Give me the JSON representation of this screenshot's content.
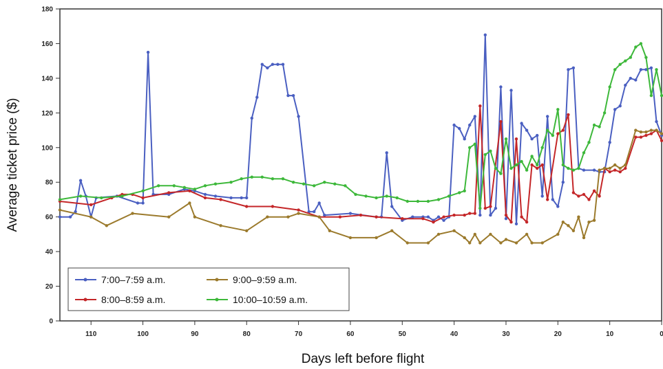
{
  "chart_data": {
    "type": "line",
    "xlabel": "Days left before flight",
    "ylabel": "Average ticket price ($)",
    "xlim": [
      116,
      0
    ],
    "ylim": [
      0,
      180
    ],
    "x_ticks": [
      110,
      100,
      90,
      80,
      70,
      60,
      50,
      40,
      30,
      20,
      10,
      0
    ],
    "x_tick_labels": [
      "110",
      "100",
      "90",
      "80",
      "70",
      "60",
      "50",
      "40",
      "30",
      "20",
      "10",
      "0"
    ],
    "y_ticks": [
      0,
      20,
      40,
      60,
      80,
      100,
      120,
      140,
      160,
      180
    ],
    "y_tick_labels": [
      "0",
      "20",
      "40",
      "60",
      "80",
      "100",
      "120",
      "140",
      "160",
      "180"
    ],
    "grid": false,
    "legend_position": "bottom-left",
    "series": [
      {
        "name": "7:00–7:59 a.m.",
        "color": "#4a5fc1",
        "x": [
          116,
          114,
          113,
          112,
          111,
          110,
          109,
          105,
          101,
          100,
          99,
          98,
          95,
          92,
          90,
          88,
          86,
          83,
          81,
          80,
          79,
          78,
          77,
          76,
          75,
          74,
          73,
          72,
          71,
          70,
          68,
          67,
          66,
          65,
          60,
          55,
          54,
          53,
          52,
          50,
          48,
          46,
          45,
          44,
          43,
          42,
          41,
          40,
          39,
          38,
          37,
          36,
          35,
          34,
          33,
          32,
          31,
          30,
          29,
          28,
          27,
          26,
          25,
          24,
          23,
          22,
          21,
          20,
          19,
          18,
          17,
          16,
          15,
          13,
          12,
          11,
          10,
          9,
          8,
          7,
          6,
          5,
          4,
          3,
          2,
          1,
          0
        ],
        "values": [
          60,
          60,
          63,
          81,
          72,
          60,
          71,
          72,
          68,
          68,
          155,
          73,
          73,
          76,
          75,
          73,
          72,
          71,
          71,
          71,
          117,
          129,
          148,
          146,
          148,
          148,
          148,
          130,
          130,
          118,
          63,
          63,
          68,
          61,
          62,
          60,
          60,
          97,
          66,
          58,
          60,
          60,
          60,
          58,
          60,
          58,
          60,
          113,
          111,
          105,
          113,
          118,
          61,
          165,
          61,
          65,
          135,
          59,
          133,
          56,
          114,
          110,
          105,
          107,
          72,
          118,
          70,
          66,
          80,
          145,
          146,
          88,
          87,
          87,
          86,
          86,
          103,
          122,
          124,
          136,
          140,
          139,
          145,
          145,
          146,
          115,
          107
        ]
      },
      {
        "name": "8:00–8:59 a.m.",
        "color": "#c42628",
        "x": [
          116,
          110,
          106,
          104,
          102,
          100,
          95,
          91,
          88,
          85,
          80,
          75,
          70,
          66,
          62,
          58,
          55,
          50,
          46,
          44,
          42,
          40,
          38,
          37,
          36,
          35,
          34,
          33,
          31,
          30,
          29,
          28,
          27,
          26,
          25,
          24,
          23,
          22,
          20,
          19,
          18,
          17,
          16,
          15,
          14,
          13,
          12,
          11,
          10,
          9,
          8,
          7,
          5,
          4,
          3,
          2,
          1,
          0
        ],
        "values": [
          69,
          67,
          71,
          73,
          73,
          71,
          74,
          75,
          71,
          70,
          66,
          66,
          64,
          60,
          60,
          61,
          60,
          59,
          59,
          57,
          60,
          61,
          61,
          62,
          62,
          124,
          65,
          66,
          115,
          61,
          57,
          105,
          60,
          57,
          90,
          88,
          90,
          70,
          108,
          110,
          119,
          74,
          72,
          73,
          70,
          75,
          72,
          88,
          86,
          87,
          86,
          88,
          106,
          106,
          107,
          108,
          110,
          104
        ]
      },
      {
        "name": "9:00–9:59 a.m.",
        "color": "#9b7a2c",
        "x": [
          116,
          110,
          107,
          102,
          95,
          91,
          90,
          85,
          80,
          76,
          72,
          70,
          66,
          64,
          60,
          55,
          52,
          49,
          45,
          43,
          40,
          38,
          37,
          36,
          35,
          33,
          31,
          30,
          28,
          26,
          25,
          23,
          20,
          19,
          18,
          17,
          16,
          15,
          14,
          13,
          12,
          11,
          10,
          9,
          8,
          7,
          5,
          4,
          3,
          2,
          1,
          0
        ],
        "values": [
          64,
          60,
          55,
          62,
          60,
          68,
          60,
          55,
          52,
          60,
          60,
          62,
          60,
          52,
          48,
          48,
          52,
          45,
          45,
          50,
          52,
          48,
          45,
          50,
          45,
          50,
          45,
          47,
          45,
          50,
          45,
          45,
          50,
          57,
          55,
          52,
          60,
          48,
          57,
          58,
          87,
          88,
          88,
          90,
          88,
          90,
          110,
          109,
          109,
          110,
          110,
          108
        ]
      },
      {
        "name": "10:00–10:59 a.m.",
        "color": "#3db83a",
        "x": [
          116,
          112,
          108,
          104,
          100,
          97,
          94,
          92,
          90,
          88,
          86,
          83,
          81,
          79,
          77,
          75,
          73,
          71,
          69,
          67,
          65,
          63,
          61,
          59,
          57,
          55,
          53,
          51,
          49,
          47,
          45,
          43,
          41,
          39,
          38,
          37,
          36,
          35,
          34,
          33,
          32,
          31,
          30,
          29,
          28,
          27,
          26,
          25,
          24,
          23,
          22,
          21,
          20,
          19,
          18,
          17,
          16,
          15,
          14,
          13,
          12,
          11,
          10,
          9,
          8,
          7,
          6,
          5,
          4,
          3,
          2,
          1,
          0
        ],
        "values": [
          70,
          72,
          71,
          72,
          75,
          78,
          78,
          77,
          76,
          78,
          79,
          80,
          82,
          83,
          83,
          82,
          82,
          80,
          79,
          78,
          80,
          79,
          78,
          73,
          72,
          71,
          72,
          71,
          69,
          69,
          69,
          70,
          72,
          74,
          75,
          100,
          102,
          65,
          96,
          98,
          88,
          85,
          105,
          88,
          90,
          92,
          87,
          95,
          90,
          100,
          110,
          107,
          122,
          90,
          88,
          87,
          88,
          97,
          103,
          113,
          112,
          120,
          135,
          145,
          148,
          150,
          152,
          158,
          160,
          152,
          130,
          145,
          130
        ]
      }
    ]
  }
}
